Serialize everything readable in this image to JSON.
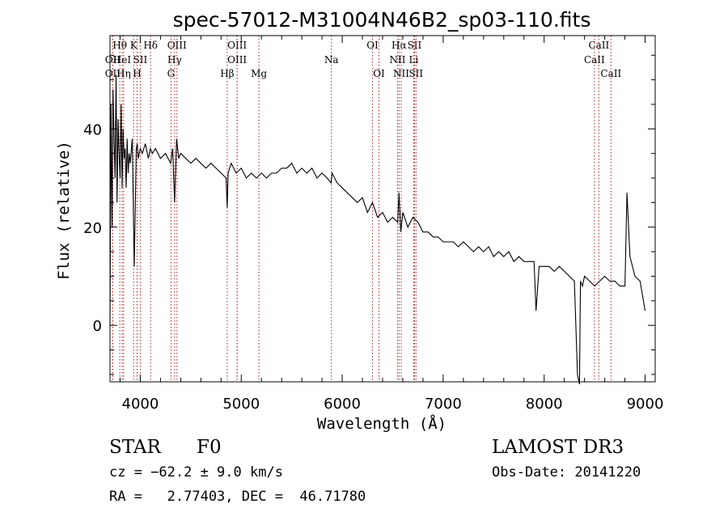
{
  "chart_data": {
    "type": "line",
    "title": "spec-57012-M31004N46B2_sp03-110.fits",
    "xlabel": "Wavelength (Å)",
    "ylabel": "Flux (relative)",
    "xlim": [
      3700,
      9100
    ],
    "ylim": [
      -11.5,
      59
    ],
    "xticks": [
      4000,
      5000,
      6000,
      7000,
      8000,
      9000
    ],
    "yticks": [
      0,
      20,
      40
    ],
    "series": [
      {
        "name": "flux",
        "x": [
          3700,
          3710,
          3720,
          3730,
          3740,
          3750,
          3760,
          3770,
          3780,
          3790,
          3800,
          3810,
          3820,
          3830,
          3840,
          3850,
          3860,
          3870,
          3880,
          3890,
          3900,
          3920,
          3940,
          3960,
          3970,
          3980,
          4000,
          4020,
          4050,
          4080,
          4100,
          4120,
          4150,
          4200,
          4250,
          4300,
          4320,
          4340,
          4360,
          4380,
          4400,
          4450,
          4500,
          4550,
          4600,
          4650,
          4700,
          4750,
          4800,
          4850,
          4861,
          4870,
          4900,
          4950,
          5000,
          5050,
          5100,
          5150,
          5200,
          5250,
          5300,
          5350,
          5400,
          5450,
          5500,
          5550,
          5600,
          5650,
          5700,
          5750,
          5800,
          5850,
          5890,
          5900,
          5950,
          6000,
          6050,
          6100,
          6150,
          6200,
          6250,
          6300,
          6350,
          6400,
          6450,
          6500,
          6550,
          6563,
          6580,
          6600,
          6650,
          6700,
          6750,
          6800,
          6850,
          6900,
          6950,
          7000,
          7050,
          7100,
          7150,
          7200,
          7250,
          7300,
          7350,
          7400,
          7450,
          7500,
          7550,
          7600,
          7650,
          7700,
          7750,
          7800,
          7850,
          7900,
          7920,
          7950,
          8000,
          8050,
          8100,
          8150,
          8200,
          8250,
          8300,
          8330,
          8350,
          8360,
          8380,
          8400,
          8450,
          8500,
          8550,
          8600,
          8650,
          8700,
          8750,
          8800,
          8820,
          8850,
          8900,
          8950,
          9000
        ],
        "values": [
          0,
          45,
          20,
          48,
          38,
          30,
          51,
          25,
          42,
          35,
          30,
          45,
          28,
          40,
          34,
          36,
          28,
          38,
          31,
          35,
          33,
          38,
          12,
          36,
          37,
          34,
          36,
          35,
          37,
          34,
          36,
          35,
          36,
          34,
          35,
          33,
          36,
          25,
          38,
          34,
          35,
          34,
          33,
          34,
          33,
          32,
          33,
          32,
          31,
          30,
          24,
          31,
          33,
          31,
          32,
          30,
          31,
          30,
          31,
          30,
          31,
          31,
          32,
          32,
          33,
          31,
          32,
          31,
          32,
          30,
          31,
          30,
          29,
          31,
          29,
          28,
          27,
          26,
          25,
          26,
          23,
          25,
          22,
          23,
          21,
          22,
          21,
          27,
          19,
          23,
          20,
          22,
          21,
          19,
          19,
          18,
          18,
          17,
          17,
          17,
          16,
          17,
          16,
          15,
          16,
          15,
          16,
          14,
          15,
          14,
          15,
          13,
          14,
          13,
          13,
          13,
          3,
          12,
          12,
          12,
          11,
          12,
          11,
          10,
          9,
          -10,
          -12,
          9,
          8,
          10,
          9,
          8,
          9,
          10,
          9,
          9,
          8,
          8,
          27,
          14,
          10,
          9,
          3
        ]
      }
    ],
    "lines": [
      {
        "name": "OII",
        "x": 3727,
        "row": 2
      },
      {
        "name": "OII",
        "x": 3727,
        "row": 3
      },
      {
        "name": "Hθ",
        "x": 3797,
        "row": 1
      },
      {
        "name": "HeI",
        "x": 3820,
        "row": 2
      },
      {
        "name": "Hη",
        "x": 3835,
        "row": 3
      },
      {
        "name": "K",
        "x": 3934,
        "row": 1
      },
      {
        "name": "SII",
        "x": 4000,
        "row": 2
      },
      {
        "name": "H",
        "x": 3968,
        "row": 3
      },
      {
        "name": "Hδ",
        "x": 4102,
        "row": 1
      },
      {
        "name": "OIII",
        "x": 4363,
        "row": 1
      },
      {
        "name": "Hγ",
        "x": 4340,
        "row": 2
      },
      {
        "name": "G",
        "x": 4304,
        "row": 3
      },
      {
        "name": "OIII",
        "x": 4959,
        "row": 1
      },
      {
        "name": "OIII",
        "x": 4959,
        "row": 2
      },
      {
        "name": "Hβ",
        "x": 4861,
        "row": 3
      },
      {
        "name": "Mg",
        "x": 5175,
        "row": 3
      },
      {
        "name": "Na",
        "x": 5893,
        "row": 2
      },
      {
        "name": "OI",
        "x": 6300,
        "row": 1
      },
      {
        "name": "OI",
        "x": 6364,
        "row": 3
      },
      {
        "name": "Hα",
        "x": 6563,
        "row": 1
      },
      {
        "name": "SII",
        "x": 6716,
        "row": 1
      },
      {
        "name": "NII",
        "x": 6548,
        "row": 2
      },
      {
        "name": "Li",
        "x": 6708,
        "row": 2
      },
      {
        "name": "NII",
        "x": 6584,
        "row": 3
      },
      {
        "name": "SII",
        "x": 6731,
        "row": 3
      },
      {
        "name": "CaII",
        "x": 8542,
        "row": 1
      },
      {
        "name": "CaII",
        "x": 8498,
        "row": 2
      },
      {
        "name": "CaII",
        "x": 8662,
        "row": 3
      }
    ]
  },
  "info": {
    "class": "STAR",
    "subclass": "F0",
    "survey": "LAMOST DR3",
    "cz": "cz = −62.2 ± 9.0 km/s",
    "obs_date": "Obs-Date: 20141220",
    "radec": "RA =   2.77403, DEC =  46.71780"
  }
}
